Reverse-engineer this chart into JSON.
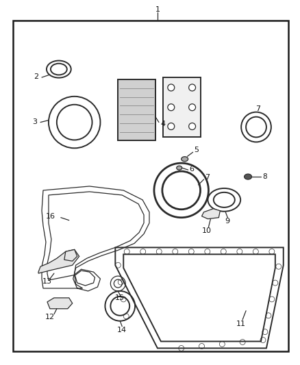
{
  "bg_color": "#ffffff",
  "border_color": "#1a1a1a",
  "line_color": "#2a2a2a",
  "label_color": "#111111",
  "fig_width": 4.38,
  "fig_height": 5.33,
  "dpi": 100
}
